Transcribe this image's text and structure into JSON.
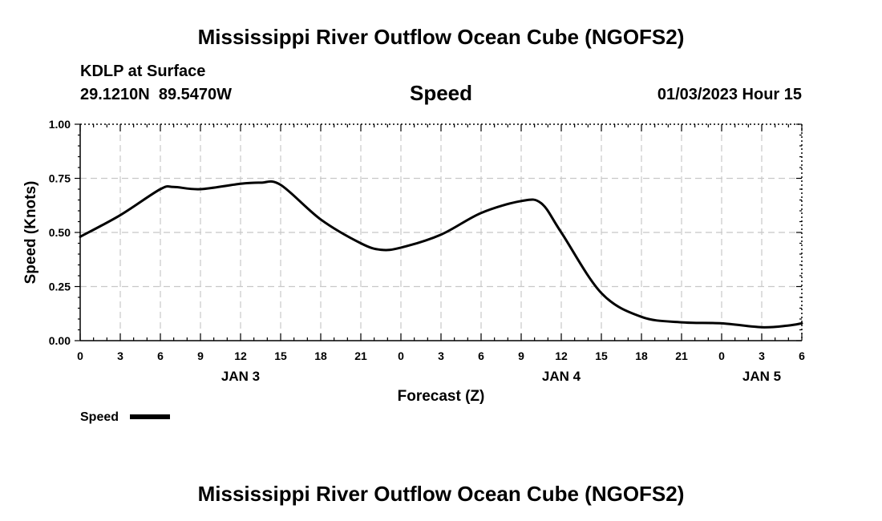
{
  "header": {
    "title": "Mississippi River Outflow Ocean Cube (NGOFS2)",
    "station": "KDLP at Surface",
    "coords": "29.1210N  89.5470W",
    "variable": "Speed",
    "timestamp": "01/03/2023 Hour 15"
  },
  "footer": {
    "title": "Mississippi River Outflow Ocean Cube (NGOFS2)"
  },
  "chart_data": {
    "type": "line",
    "ylabel": "Speed (Knots)",
    "xlabel": "Forecast (Z)",
    "ylim": [
      0,
      1
    ],
    "xlim": [
      0,
      54
    ],
    "grid": true,
    "legend": "bottom-left",
    "ytick_labels": [
      "0.00",
      "0.25",
      "0.50",
      "0.75",
      "1.00"
    ],
    "ytick_values": [
      0,
      0.25,
      0.5,
      0.75,
      1.0
    ],
    "xtick_values": [
      0,
      3,
      6,
      9,
      12,
      15,
      18,
      21,
      24,
      27,
      30,
      33,
      36,
      39,
      42,
      45,
      48,
      51,
      54
    ],
    "xtick_labels": [
      "0",
      "3",
      "6",
      "9",
      "12",
      "15",
      "18",
      "21",
      "0",
      "3",
      "6",
      "9",
      "12",
      "15",
      "18",
      "21",
      "0",
      "3",
      "6"
    ],
    "day_labels": [
      {
        "x": 12,
        "label": "JAN 3"
      },
      {
        "x": 36,
        "label": "JAN 4"
      },
      {
        "x": 51,
        "label": "JAN 5"
      }
    ],
    "series": [
      {
        "name": "Speed",
        "color": "#000000",
        "x": [
          0,
          3,
          6,
          7,
          9,
          12,
          13.5,
          15,
          18,
          21,
          22.5,
          24,
          27,
          30,
          33,
          34.5,
          36,
          39,
          42,
          45,
          48,
          51,
          53,
          54
        ],
        "values": [
          0.48,
          0.58,
          0.7,
          0.71,
          0.7,
          0.725,
          0.73,
          0.72,
          0.56,
          0.45,
          0.42,
          0.43,
          0.49,
          0.59,
          0.645,
          0.635,
          0.5,
          0.22,
          0.11,
          0.085,
          0.08,
          0.062,
          0.07,
          0.08
        ]
      }
    ]
  }
}
